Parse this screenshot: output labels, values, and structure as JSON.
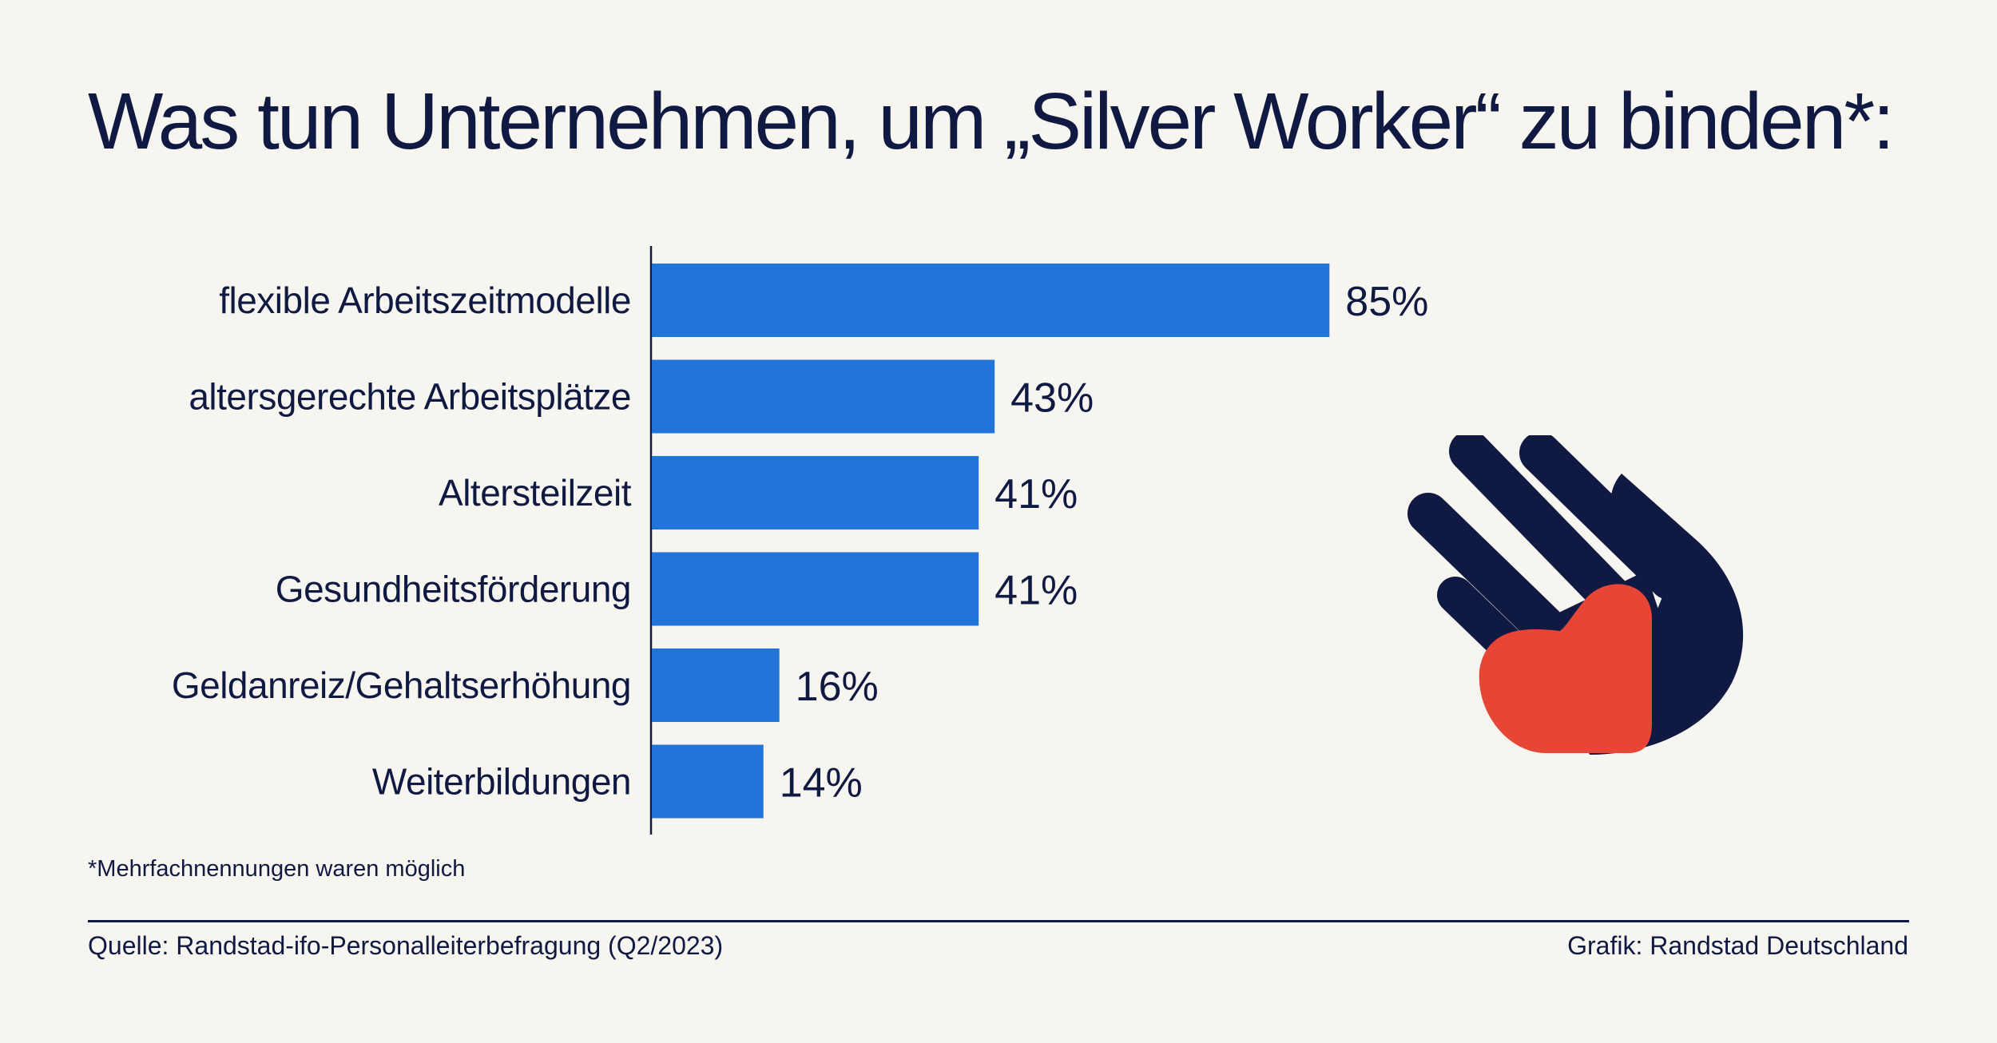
{
  "title": "Was tun Unternehmen, um „Silver Worker“ zu binden*:",
  "chart_data": {
    "type": "bar",
    "orientation": "horizontal",
    "categories": [
      "flexible Arbeitszeitmodelle",
      "altersgerechte Arbeitsplätze",
      "Altersteilzeit",
      "Gesundheitsförderung",
      "Geldanreiz/Gehaltserhöhung",
      "Weiterbildungen"
    ],
    "values": [
      85,
      43,
      41,
      41,
      16,
      14
    ],
    "value_labels": [
      "85%",
      "43%",
      "41%",
      "41%",
      "16%",
      "14%"
    ],
    "unit": "%",
    "xlim": [
      0,
      100
    ],
    "grid": false,
    "legend": "none",
    "bar_color": "#2175d9"
  },
  "footnote": "*Mehrfachnennungen waren möglich",
  "source": "Quelle: Randstad-ifo-Personalleiterbefragung (Q2/2023)",
  "credit": "Grafik: Randstad Deutschland",
  "illustration": {
    "icon": "hand-holding-heart-icon",
    "colors": {
      "hand": "#0f1941",
      "heart": "#e74536"
    }
  }
}
